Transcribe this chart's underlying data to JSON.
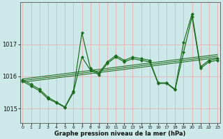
{
  "xlabel": "Graphe pression niveau de la mer (hPa)",
  "bg_color": "#cce8e8",
  "grid_color": "#e8b0b0",
  "line_color": "#1a6b1a",
  "x": [
    0,
    1,
    2,
    3,
    4,
    5,
    6,
    7,
    8,
    9,
    10,
    11,
    12,
    13,
    14,
    15,
    16,
    17,
    18,
    19,
    20,
    21,
    22,
    23
  ],
  "y_main": [
    1015.9,
    1015.75,
    1015.6,
    1015.35,
    1015.2,
    1015.05,
    1015.55,
    1017.35,
    1016.25,
    1016.1,
    1016.45,
    1016.65,
    1016.5,
    1016.6,
    1016.55,
    1016.5,
    1015.8,
    1015.8,
    1015.6,
    1017.05,
    1017.95,
    1016.3,
    1016.5,
    1016.55
  ],
  "y_line2": [
    1015.85,
    1015.7,
    1015.55,
    1015.3,
    1015.18,
    1015.03,
    1015.5,
    1016.6,
    1016.2,
    1016.05,
    1016.4,
    1016.6,
    1016.45,
    1016.55,
    1016.5,
    1016.45,
    1015.78,
    1015.78,
    1015.58,
    1016.75,
    1017.85,
    1016.25,
    1016.45,
    1016.5
  ],
  "trend1_x": [
    0,
    23
  ],
  "trend1_y": [
    1015.82,
    1016.58
  ],
  "trend2_x": [
    0,
    23
  ],
  "trend2_y": [
    1015.87,
    1016.63
  ],
  "trend3_x": [
    0,
    23
  ],
  "trend3_y": [
    1015.92,
    1016.68
  ],
  "ylim": [
    1014.55,
    1018.3
  ],
  "yticks": [
    1015,
    1016,
    1017
  ],
  "xticks": [
    0,
    1,
    2,
    3,
    4,
    5,
    6,
    7,
    8,
    9,
    10,
    11,
    12,
    13,
    14,
    15,
    16,
    17,
    18,
    19,
    20,
    21,
    22,
    23
  ],
  "xlim": [
    -0.3,
    23.3
  ],
  "figwidth": 3.2,
  "figheight": 2.0,
  "dpi": 100
}
